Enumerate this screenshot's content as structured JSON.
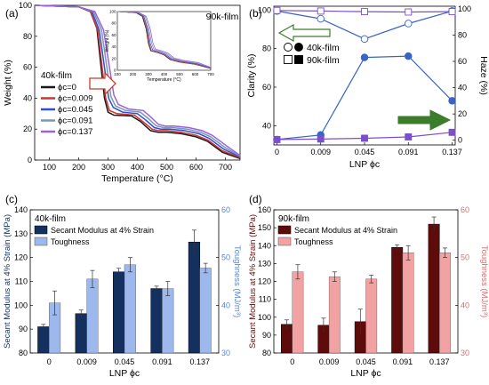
{
  "panel_labels": [
    "(a)",
    "(b)",
    "(c)",
    "(d)"
  ],
  "colors": {
    "phi0": "#1a1a1a",
    "phi0009": "#d0342c",
    "phi0045": "#2c4fd8",
    "phi0091": "#7c96b4",
    "phi0137": "#9a62d9",
    "clarity": "#3a63c8",
    "haze": "#7b4fc9",
    "navy": "#14305f",
    "lightblue": "#9cb8ec",
    "maroon": "#5e0b0b",
    "pink": "#f2a2a2",
    "axis_blue": "#5b86c8",
    "axis_red": "#d07070",
    "arrow_green": "#3b7d2b",
    "arrow_red": "#c8392b"
  },
  "chart_data": [
    {
      "type": "line",
      "panel": "(a)",
      "xlabel": "Temperature (°C)",
      "ylabel": "Weight (%)",
      "xlim": [
        50,
        750
      ],
      "ylim": [
        0,
        100
      ],
      "xticks": [
        100,
        200,
        300,
        400,
        500,
        600,
        700
      ],
      "yticks": [
        0,
        20,
        40,
        60,
        80,
        100
      ],
      "legend_title": "40k-film",
      "legend": [
        "ϕc=0",
        "ϕc=0.009",
        "ϕc=0.045",
        "ϕc=0.091",
        "ϕc=0.137"
      ],
      "series": [
        {
          "name": "ϕc=0",
          "color_key": "phi0",
          "points": [
            [
              50,
              100
            ],
            [
              200,
              99
            ],
            [
              240,
              96
            ],
            [
              262,
              85
            ],
            [
              275,
              62
            ],
            [
              288,
              40
            ],
            [
              300,
              31
            ],
            [
              320,
              29
            ],
            [
              380,
              28.5
            ],
            [
              410,
              25
            ],
            [
              445,
              19
            ],
            [
              470,
              18
            ],
            [
              500,
              18
            ],
            [
              550,
              17
            ],
            [
              600,
              15
            ],
            [
              640,
              12
            ],
            [
              690,
              5
            ],
            [
              750,
              1
            ]
          ]
        },
        {
          "name": "ϕc=0.009",
          "color_key": "phi0009",
          "points": [
            [
              50,
              100
            ],
            [
              200,
              99
            ],
            [
              240,
              96
            ],
            [
              265,
              84
            ],
            [
              280,
              60
            ],
            [
              292,
              40
            ],
            [
              305,
              32
            ],
            [
              330,
              30
            ],
            [
              390,
              29
            ],
            [
              418,
              25
            ],
            [
              450,
              20
            ],
            [
              470,
              19
            ],
            [
              500,
              19
            ],
            [
              550,
              18
            ],
            [
              600,
              16
            ],
            [
              640,
              13
            ],
            [
              690,
              6
            ],
            [
              750,
              1.5
            ]
          ]
        },
        {
          "name": "ϕc=0.045",
          "color_key": "phi0045",
          "points": [
            [
              50,
              100
            ],
            [
              200,
              99
            ],
            [
              245,
              96
            ],
            [
              270,
              84
            ],
            [
              288,
              60
            ],
            [
              302,
              40
            ],
            [
              318,
              34
            ],
            [
              350,
              31
            ],
            [
              400,
              30
            ],
            [
              428,
              26
            ],
            [
              458,
              21
            ],
            [
              480,
              20
            ],
            [
              510,
              20
            ],
            [
              560,
              19
            ],
            [
              610,
              17
            ],
            [
              645,
              14
            ],
            [
              695,
              7
            ],
            [
              750,
              2
            ]
          ]
        },
        {
          "name": "ϕc=0.091",
          "color_key": "phi0091",
          "points": [
            [
              50,
              100
            ],
            [
              200,
              99
            ],
            [
              250,
              96
            ],
            [
              278,
              84
            ],
            [
              296,
              60
            ],
            [
              310,
              41
            ],
            [
              325,
              35
            ],
            [
              360,
              32
            ],
            [
              410,
              31
            ],
            [
              436,
              27
            ],
            [
              465,
              22
            ],
            [
              490,
              21
            ],
            [
              520,
              21
            ],
            [
              570,
              20
            ],
            [
              615,
              18
            ],
            [
              650,
              15
            ],
            [
              700,
              8
            ],
            [
              750,
              2.5
            ]
          ]
        },
        {
          "name": "ϕc=0.137",
          "color_key": "phi0137",
          "points": [
            [
              50,
              100
            ],
            [
              200,
              99
            ],
            [
              255,
              96
            ],
            [
              285,
              84
            ],
            [
              305,
              60
            ],
            [
              320,
              42
            ],
            [
              335,
              36
            ],
            [
              370,
              33
            ],
            [
              420,
              32
            ],
            [
              445,
              28
            ],
            [
              472,
              23
            ],
            [
              495,
              22
            ],
            [
              525,
              22
            ],
            [
              575,
              21
            ],
            [
              620,
              19
            ],
            [
              655,
              16
            ],
            [
              705,
              9
            ],
            [
              750,
              3
            ]
          ]
        }
      ],
      "inset": {
        "title": "90k-film",
        "xlabel": "Temperature (°C)",
        "ylabel": "Weight (%)",
        "xlim": [
          100,
          700
        ],
        "ylim": [
          0,
          100
        ],
        "xticks": [
          100,
          200,
          300,
          400,
          500,
          600,
          700
        ],
        "yticks": [
          0,
          20,
          40,
          60,
          80,
          100
        ],
        "series": [
          {
            "name": "ϕc=0",
            "color_key": "phi0",
            "points": [
              [
                100,
                100
              ],
              [
                220,
                98
              ],
              [
                260,
                92
              ],
              [
                285,
                70
              ],
              [
                300,
                45
              ],
              [
                315,
                33
              ],
              [
                360,
                30
              ],
              [
                400,
                26
              ],
              [
                440,
                18
              ],
              [
                500,
                14
              ],
              [
                600,
                10
              ],
              [
                700,
                3
              ]
            ]
          },
          {
            "name": "ϕc=0.009",
            "color_key": "phi0009",
            "points": [
              [
                100,
                100
              ],
              [
                225,
                98
              ],
              [
                265,
                92
              ],
              [
                290,
                70
              ],
              [
                305,
                45
              ],
              [
                320,
                33
              ],
              [
                365,
                30
              ],
              [
                405,
                26
              ],
              [
                445,
                18
              ],
              [
                505,
                14
              ],
              [
                605,
                10
              ],
              [
                700,
                3.5
              ]
            ]
          },
          {
            "name": "ϕc=0.045",
            "color_key": "phi0045",
            "points": [
              [
                100,
                100
              ],
              [
                230,
                98
              ],
              [
                270,
                92
              ],
              [
                296,
                70
              ],
              [
                312,
                45
              ],
              [
                328,
                34
              ],
              [
                370,
                31
              ],
              [
                410,
                27
              ],
              [
                450,
                19
              ],
              [
                510,
                15
              ],
              [
                610,
                11
              ],
              [
                700,
                4
              ]
            ]
          },
          {
            "name": "ϕc=0.091",
            "color_key": "phi0091",
            "points": [
              [
                100,
                100
              ],
              [
                235,
                98
              ],
              [
                278,
                92
              ],
              [
                304,
                70
              ],
              [
                320,
                46
              ],
              [
                336,
                35
              ],
              [
                378,
                32
              ],
              [
                418,
                28
              ],
              [
                456,
                20
              ],
              [
                515,
                16
              ],
              [
                615,
                12
              ],
              [
                700,
                4.5
              ]
            ]
          },
          {
            "name": "ϕc=0.137",
            "color_key": "phi0137",
            "points": [
              [
                100,
                100
              ],
              [
                240,
                98
              ],
              [
                285,
                92
              ],
              [
                312,
                70
              ],
              [
                328,
                47
              ],
              [
                344,
                36
              ],
              [
                386,
                33
              ],
              [
                426,
                29
              ],
              [
                462,
                21
              ],
              [
                520,
                17
              ],
              [
                620,
                13
              ],
              [
                700,
                5
              ]
            ]
          }
        ]
      }
    },
    {
      "type": "line",
      "panel": "(b)",
      "xlabel": "LNP ϕc",
      "ylabel": "Clarity (%)",
      "y2label": "Haze (%)",
      "categories": [
        "0",
        "0.009",
        "0.045",
        "0.091",
        "0.137"
      ],
      "ylim": [
        30,
        102
      ],
      "yticks": [
        40,
        60,
        80,
        100
      ],
      "y2lim": [
        -3.6,
        102
      ],
      "y2ticks": [
        0,
        20,
        40,
        60,
        80,
        100
      ],
      "legend": [
        "40k-film",
        "90k-film"
      ],
      "series": [
        {
          "name": "40k-film clarity",
          "color_key": "clarity",
          "axis": "left",
          "marker": "circle-open",
          "values": [
            99.5,
            95.5,
            85,
            93,
            99.5
          ]
        },
        {
          "name": "90k-film clarity",
          "color_key": "haze",
          "axis": "left",
          "marker": "square-open",
          "values": [
            99.8,
            99.5,
            99.2,
            99.0,
            99.2
          ]
        },
        {
          "name": "40k-film haze",
          "color_key": "clarity",
          "axis": "right",
          "marker": "circle",
          "values": [
            0.5,
            4,
            63,
            64,
            30
          ]
        },
        {
          "name": "90k-film haze",
          "color_key": "haze",
          "axis": "right",
          "marker": "square",
          "values": [
            0.5,
            0.9,
            1.5,
            2.5,
            6
          ]
        }
      ]
    },
    {
      "type": "bar",
      "panel": "(c)",
      "title": "40k-film",
      "xlabel": "LNP ϕc",
      "ylabel": "Secant Modulus at 4% Strain (MPa)",
      "y2label": "Toughness (MJ/m³)",
      "categories": [
        "0",
        "0.009",
        "0.045",
        "0.091",
        "0.137"
      ],
      "ylim": [
        80,
        140
      ],
      "yticks": [
        80,
        90,
        100,
        110,
        120,
        130,
        140
      ],
      "y2lim": [
        30,
        60
      ],
      "y2ticks": [
        30,
        40,
        50,
        60
      ],
      "legend": [
        "Secant Modulus at 4% Strain",
        "Toughness"
      ],
      "series": [
        {
          "name": "Secant Modulus at 4% Strain",
          "color_key": "navy",
          "axis": "left",
          "values": [
            91,
            96.5,
            114,
            107,
            126.5
          ],
          "errors": [
            1,
            1.5,
            1.5,
            1,
            5
          ]
        },
        {
          "name": "Toughness",
          "color_key": "lightblue",
          "axis": "right",
          "values": [
            40.5,
            45.5,
            48.5,
            43.5,
            47.8
          ],
          "errors": [
            2.5,
            1.8,
            1.5,
            1.5,
            1
          ]
        }
      ]
    },
    {
      "type": "bar",
      "panel": "(d)",
      "title": "90k-film",
      "xlabel": "LNP ϕc",
      "ylabel": "Secant Modulus at 4% Strain (MPa)",
      "y2label": "Toughness (MJ/m³)",
      "categories": [
        "0",
        "0.009",
        "0.045",
        "0.091",
        "0.137"
      ],
      "ylim": [
        80,
        160
      ],
      "yticks": [
        80,
        90,
        100,
        110,
        120,
        130,
        140,
        150,
        160
      ],
      "y2lim": [
        30,
        60
      ],
      "y2ticks": [
        30,
        40,
        50,
        60
      ],
      "legend": [
        "Secant Modulus at 4% Strain",
        "Toughness"
      ],
      "series": [
        {
          "name": "Secant Modulus at 4% Strain",
          "color_key": "maroon",
          "axis": "left",
          "values": [
            96,
            95.5,
            97.5,
            139,
            152
          ],
          "errors": [
            2.5,
            4,
            7,
            1.5,
            4
          ]
        },
        {
          "name": "Toughness",
          "color_key": "pink",
          "axis": "right",
          "values": [
            47,
            46,
            45.5,
            51,
            51
          ],
          "errors": [
            1.5,
            1,
            0.8,
            1.5,
            1
          ]
        }
      ]
    }
  ]
}
